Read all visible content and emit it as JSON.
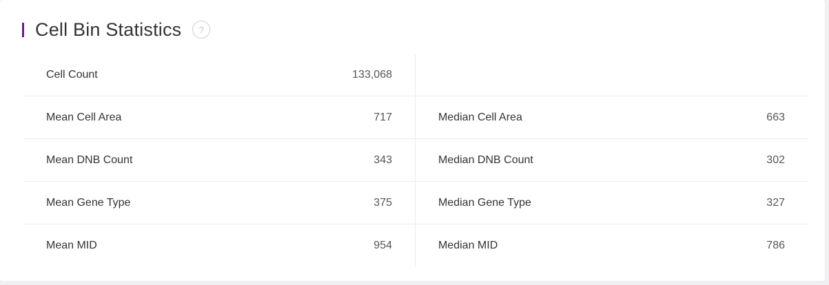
{
  "section": {
    "title": "Cell Bin Statistics",
    "help_icon": "question-circle-icon",
    "accent_color": "#6a1b8a"
  },
  "rows": [
    {
      "left": {
        "label": "Cell Count",
        "value": "133,068"
      },
      "right": {
        "label": "",
        "value": ""
      }
    },
    {
      "left": {
        "label": "Mean Cell Area",
        "value": "717"
      },
      "right": {
        "label": "Median Cell Area",
        "value": "663"
      }
    },
    {
      "left": {
        "label": "Mean DNB Count",
        "value": "343"
      },
      "right": {
        "label": "Median DNB Count",
        "value": "302"
      }
    },
    {
      "left": {
        "label": "Mean Gene Type",
        "value": "375"
      },
      "right": {
        "label": "Median Gene Type",
        "value": "327"
      }
    },
    {
      "left": {
        "label": "Mean MID",
        "value": "954"
      },
      "right": {
        "label": "Median MID",
        "value": "786"
      }
    }
  ]
}
